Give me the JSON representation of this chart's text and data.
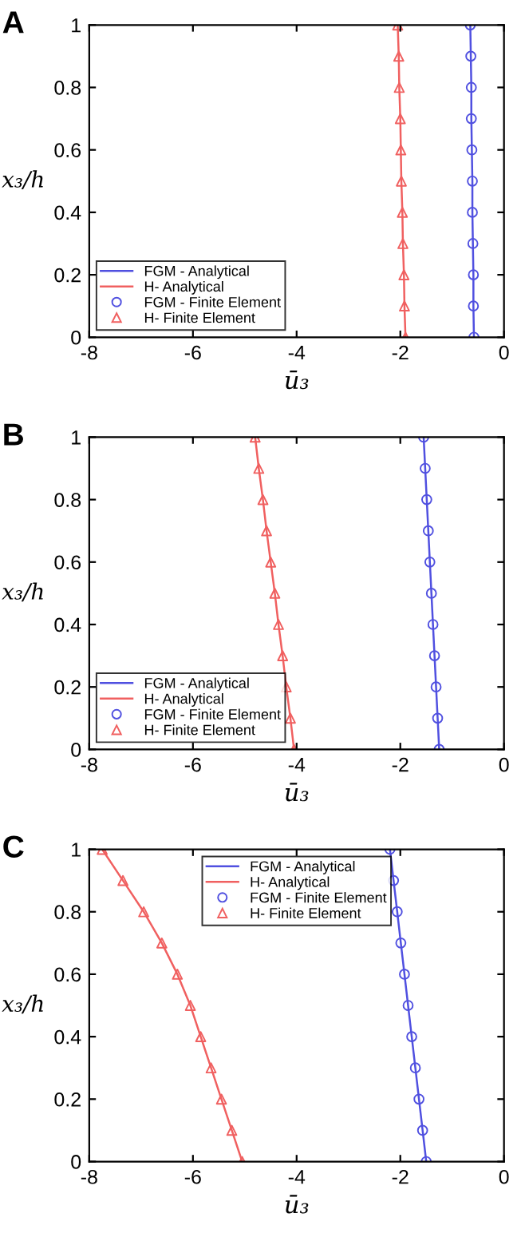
{
  "chart_data": [
    {
      "type": "line",
      "title": "A",
      "xlabel": "ū₃",
      "ylabel": "x₃/h",
      "xlim": [
        -8,
        0
      ],
      "ylim": [
        0,
        1
      ],
      "xticks": [
        -8,
        -6,
        -4,
        -2,
        0
      ],
      "yticks": [
        0,
        0.2,
        0.4,
        0.6,
        0.8,
        1
      ],
      "grid": false,
      "legend": "lower left",
      "series": [
        {
          "name": "FGM - Analytical",
          "color": "#5050e0",
          "line_style": "solid",
          "x": [
            -0.58,
            -0.59,
            -0.59,
            -0.6,
            -0.61,
            -0.61,
            -0.62,
            -0.63,
            -0.63,
            -0.64,
            -0.65
          ],
          "values": [
            0,
            0.1,
            0.2,
            0.3,
            0.4,
            0.5,
            0.6,
            0.7,
            0.8,
            0.9,
            1
          ]
        },
        {
          "name": "H- Analytical",
          "color": "#f06060",
          "line_style": "solid",
          "x": [
            -1.9,
            -1.92,
            -1.93,
            -1.95,
            -1.96,
            -1.98,
            -1.99,
            -2.0,
            -2.02,
            -2.03,
            -2.05
          ],
          "values": [
            0,
            0.1,
            0.2,
            0.3,
            0.4,
            0.5,
            0.6,
            0.7,
            0.8,
            0.9,
            1
          ]
        },
        {
          "name": "FGM - Finite Element",
          "type": "scatter",
          "marker": "circle",
          "color": "#5050e0",
          "x": [
            -0.58,
            -0.59,
            -0.59,
            -0.6,
            -0.61,
            -0.61,
            -0.62,
            -0.63,
            -0.63,
            -0.64,
            -0.65
          ],
          "values": [
            0,
            0.1,
            0.2,
            0.3,
            0.4,
            0.5,
            0.6,
            0.7,
            0.8,
            0.9,
            1
          ]
        },
        {
          "name": "H- Finite Element",
          "type": "scatter",
          "marker": "triangle",
          "color": "#f06060",
          "x": [
            -1.9,
            -1.92,
            -1.93,
            -1.95,
            -1.96,
            -1.98,
            -1.99,
            -2.0,
            -2.02,
            -2.03,
            -2.05
          ],
          "values": [
            0,
            0.1,
            0.2,
            0.3,
            0.4,
            0.5,
            0.6,
            0.7,
            0.8,
            0.9,
            1
          ]
        }
      ]
    },
    {
      "type": "line",
      "title": "B",
      "xlabel": "ū₃",
      "ylabel": "x₃/h",
      "xlim": [
        -8,
        0
      ],
      "ylim": [
        0,
        1
      ],
      "xticks": [
        -8,
        -6,
        -4,
        -2,
        0
      ],
      "yticks": [
        0,
        0.2,
        0.4,
        0.6,
        0.8,
        1
      ],
      "grid": false,
      "legend": "lower left",
      "series": [
        {
          "name": "FGM - Analytical",
          "color": "#5050e0",
          "line_style": "solid",
          "x": [
            -1.25,
            -1.28,
            -1.31,
            -1.34,
            -1.37,
            -1.4,
            -1.43,
            -1.46,
            -1.49,
            -1.52,
            -1.55
          ],
          "values": [
            0,
            0.1,
            0.2,
            0.3,
            0.4,
            0.5,
            0.6,
            0.7,
            0.8,
            0.9,
            1
          ]
        },
        {
          "name": "H- Analytical",
          "color": "#f06060",
          "line_style": "solid",
          "x": [
            -4.05,
            -4.12,
            -4.2,
            -4.27,
            -4.35,
            -4.42,
            -4.5,
            -4.58,
            -4.65,
            -4.73,
            -4.8
          ],
          "values": [
            0,
            0.1,
            0.2,
            0.3,
            0.4,
            0.5,
            0.6,
            0.7,
            0.8,
            0.9,
            1
          ]
        },
        {
          "name": "FGM - Finite Element",
          "type": "scatter",
          "marker": "circle",
          "color": "#5050e0",
          "x": [
            -1.25,
            -1.28,
            -1.31,
            -1.34,
            -1.37,
            -1.4,
            -1.43,
            -1.46,
            -1.49,
            -1.52,
            -1.55
          ],
          "values": [
            0,
            0.1,
            0.2,
            0.3,
            0.4,
            0.5,
            0.6,
            0.7,
            0.8,
            0.9,
            1
          ]
        },
        {
          "name": "H- Finite Element",
          "type": "scatter",
          "marker": "triangle",
          "color": "#f06060",
          "x": [
            -4.05,
            -4.12,
            -4.2,
            -4.27,
            -4.35,
            -4.42,
            -4.5,
            -4.58,
            -4.65,
            -4.73,
            -4.8
          ],
          "values": [
            0,
            0.1,
            0.2,
            0.3,
            0.4,
            0.5,
            0.6,
            0.7,
            0.8,
            0.9,
            1
          ]
        }
      ]
    },
    {
      "type": "line",
      "title": "C",
      "xlabel": "ū₃",
      "ylabel": "x₃/h",
      "xlim": [
        -8,
        0
      ],
      "ylim": [
        0,
        1
      ],
      "xticks": [
        -8,
        -6,
        -4,
        -2,
        0
      ],
      "yticks": [
        0,
        0.2,
        0.4,
        0.6,
        0.8,
        1
      ],
      "grid": false,
      "legend": "top",
      "series": [
        {
          "name": "FGM - Analytical",
          "color": "#5050e0",
          "line_style": "solid",
          "x": [
            -1.5,
            -1.57,
            -1.64,
            -1.71,
            -1.78,
            -1.85,
            -1.92,
            -1.99,
            -2.06,
            -2.13,
            -2.2
          ],
          "values": [
            0,
            0.1,
            0.2,
            0.3,
            0.4,
            0.5,
            0.6,
            0.7,
            0.8,
            0.9,
            1
          ]
        },
        {
          "name": "H- Analytical",
          "color": "#f06060",
          "line_style": "solid",
          "x": [
            -5.05,
            -5.25,
            -5.45,
            -5.65,
            -5.85,
            -6.05,
            -6.3,
            -6.6,
            -6.95,
            -7.35,
            -7.75
          ],
          "values": [
            0,
            0.1,
            0.2,
            0.3,
            0.4,
            0.5,
            0.6,
            0.7,
            0.8,
            0.9,
            1
          ]
        },
        {
          "name": "FGM - Finite Element",
          "type": "scatter",
          "marker": "circle",
          "color": "#5050e0",
          "x": [
            -1.5,
            -1.57,
            -1.64,
            -1.71,
            -1.78,
            -1.85,
            -1.92,
            -1.99,
            -2.06,
            -2.13,
            -2.2
          ],
          "values": [
            0,
            0.1,
            0.2,
            0.3,
            0.4,
            0.5,
            0.6,
            0.7,
            0.8,
            0.9,
            1
          ]
        },
        {
          "name": "H- Finite Element",
          "type": "scatter",
          "marker": "triangle",
          "color": "#f06060",
          "x": [
            -5.05,
            -5.25,
            -5.45,
            -5.65,
            -5.85,
            -6.05,
            -6.3,
            -6.6,
            -6.95,
            -7.35,
            -7.75
          ],
          "values": [
            0,
            0.1,
            0.2,
            0.3,
            0.4,
            0.5,
            0.6,
            0.7,
            0.8,
            0.9,
            1
          ]
        }
      ]
    }
  ]
}
